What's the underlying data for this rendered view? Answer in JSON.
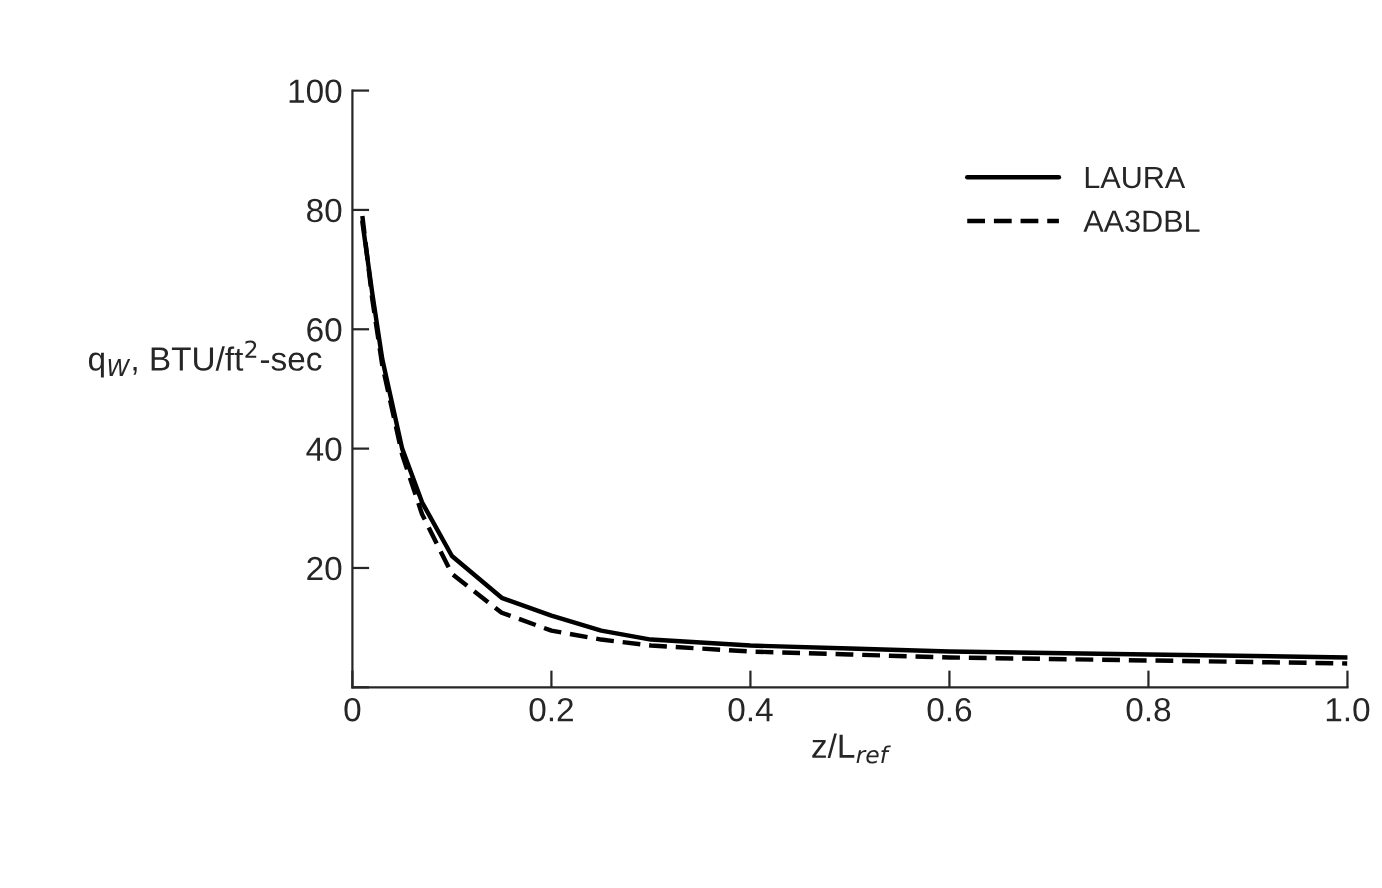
{
  "chart_data": {
    "type": "line",
    "xlabel": "z/L$_{ref}$",
    "ylabel": "q$_{W}$, BTU/ft$^{2}$-sec",
    "xlim": [
      0,
      1.0
    ],
    "xticks": [
      {
        "value": 0,
        "label": "0"
      },
      0.2,
      0.4,
      0.6,
      0.8,
      {
        "value": 1.0,
        "label": "1.0"
      }
    ],
    "ylim": [
      0,
      100
    ],
    "yticks": [
      {
        "value": 0,
        "label": null
      },
      20,
      40,
      60,
      80,
      100
    ],
    "grid": false,
    "legend": "top right",
    "marker": "none",
    "series": [
      {
        "name": "LAURA",
        "color": "#000000",
        "line_style": "solid",
        "x": [
          0.01,
          0.02,
          0.03,
          0.05,
          0.07,
          0.1,
          0.15,
          0.2,
          0.25,
          0.3,
          0.4,
          0.5,
          0.6,
          0.8,
          1.0
        ],
        "values": [
          78,
          66,
          55,
          40,
          31,
          22,
          15,
          12,
          9.5,
          8,
          7,
          6.5,
          6,
          5.5,
          5
        ]
      },
      {
        "name": "AA3DBL",
        "color": "#000000",
        "line_style": "dashed",
        "x": [
          0.01,
          0.02,
          0.03,
          0.05,
          0.07,
          0.1,
          0.15,
          0.2,
          0.25,
          0.3,
          0.4,
          0.5,
          0.6,
          0.8,
          1.0
        ],
        "values": [
          79,
          65,
          54,
          39,
          29,
          19,
          12.5,
          9.5,
          8,
          7,
          6,
          5.5,
          5,
          4.5,
          4
        ]
      }
    ]
  }
}
